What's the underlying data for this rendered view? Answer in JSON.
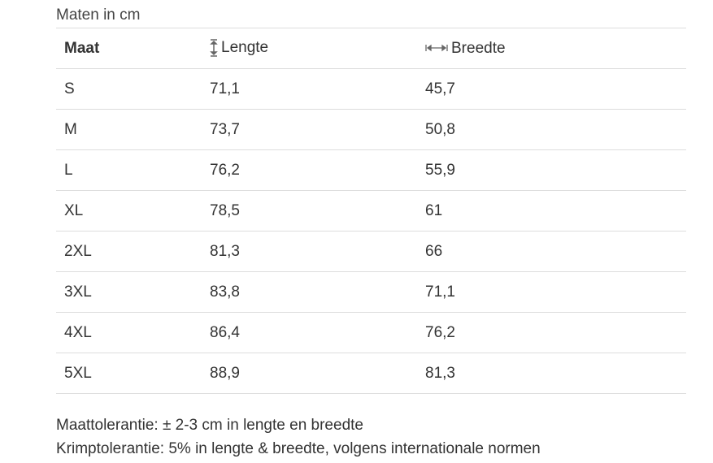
{
  "caption": "Maten in cm",
  "headers": {
    "size": "Maat",
    "length": "Lengte",
    "width": "Breedte",
    "length_icon": "vertical-measure-icon",
    "width_icon": "horizontal-measure-icon"
  },
  "rows": [
    {
      "size": "S",
      "length": "71,1",
      "width": "45,7"
    },
    {
      "size": "M",
      "length": "73,7",
      "width": "50,8"
    },
    {
      "size": "L",
      "length": "76,2",
      "width": "55,9"
    },
    {
      "size": "XL",
      "length": "78,5",
      "width": "61"
    },
    {
      "size": "2XL",
      "length": "81,3",
      "width": "66"
    },
    {
      "size": "3XL",
      "length": "83,8",
      "width": "71,1"
    },
    {
      "size": "4XL",
      "length": "86,4",
      "width": "76,2"
    },
    {
      "size": "5XL",
      "length": "88,9",
      "width": "81,3"
    }
  ],
  "notes": [
    "Maattolerantie: ± 2-3 cm in lengte en breedte",
    "Krimptolerantie: 5% in lengte & breedte, volgens internationale normen"
  ]
}
